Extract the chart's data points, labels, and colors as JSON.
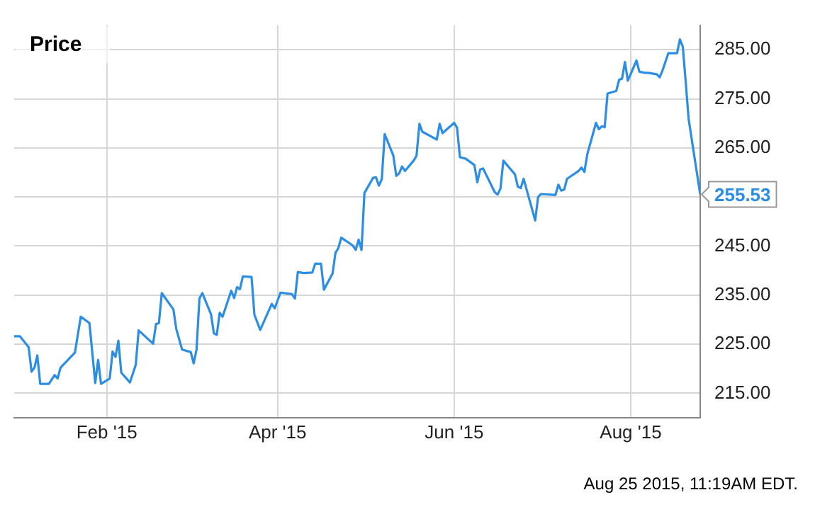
{
  "chart_data": {
    "type": "line",
    "title": "Price",
    "annotations": [
      {
        "text": "255.53",
        "x": "2015-08-25",
        "y": 255.53
      },
      "Aug 25 2015, 11:19AM EDT."
    ],
    "xlim": [
      "2014-12-31",
      "2015-08-25"
    ],
    "xticks": [
      {
        "value": "2015-02-01",
        "label": "Feb '15"
      },
      {
        "value": "2015-04-01",
        "label": "Apr '15"
      },
      {
        "value": "2015-06-01",
        "label": "Jun '15"
      },
      {
        "value": "2015-08-01",
        "label": "Aug '15"
      }
    ],
    "ylim": [
      210,
      290
    ],
    "yticks": [
      {
        "value": 215,
        "label": "215.00"
      },
      {
        "value": 225,
        "label": "225.00"
      },
      {
        "value": 235,
        "label": "235.00"
      },
      {
        "value": 245,
        "label": "245.00"
      },
      {
        "value": 255,
        "label": null
      },
      {
        "value": 265,
        "label": "265.00"
      },
      {
        "value": 275,
        "label": "275.00"
      },
      {
        "value": 285,
        "label": "285.00"
      }
    ],
    "grid": true,
    "legend": false,
    "marker": "none",
    "line_style": "solid",
    "series": [
      {
        "color": "#2b8de3",
        "x": [
          "2014-12-31",
          "2015-01-02",
          "2015-01-05",
          "2015-01-06",
          "2015-01-07",
          "2015-01-08",
          "2015-01-09",
          "2015-01-12",
          "2015-01-14",
          "2015-01-15",
          "2015-01-16",
          "2015-01-21",
          "2015-01-23",
          "2015-01-26",
          "2015-01-28",
          "2015-01-29",
          "2015-01-30",
          "2015-02-02",
          "2015-02-03",
          "2015-02-04",
          "2015-02-05",
          "2015-02-06",
          "2015-02-09",
          "2015-02-11",
          "2015-02-12",
          "2015-02-17",
          "2015-02-18",
          "2015-02-19",
          "2015-02-20",
          "2015-02-24",
          "2015-02-25",
          "2015-02-27",
          "2015-03-02",
          "2015-03-03",
          "2015-03-04",
          "2015-03-05",
          "2015-03-06",
          "2015-03-09",
          "2015-03-10",
          "2015-03-11",
          "2015-03-12",
          "2015-03-13",
          "2015-03-16",
          "2015-03-17",
          "2015-03-18",
          "2015-03-19",
          "2015-03-20",
          "2015-03-23",
          "2015-03-24",
          "2015-03-26",
          "2015-03-30",
          "2015-03-31",
          "2015-04-02",
          "2015-04-06",
          "2015-04-07",
          "2015-04-08",
          "2015-04-10",
          "2015-04-13",
          "2015-04-14",
          "2015-04-16",
          "2015-04-17",
          "2015-04-20",
          "2015-04-21",
          "2015-04-22",
          "2015-04-23",
          "2015-04-27",
          "2015-04-28",
          "2015-04-29",
          "2015-04-30",
          "2015-05-01",
          "2015-05-04",
          "2015-05-05",
          "2015-05-06",
          "2015-05-07",
          "2015-05-08",
          "2015-05-11",
          "2015-05-12",
          "2015-05-13",
          "2015-05-14",
          "2015-05-15",
          "2015-05-18",
          "2015-05-19",
          "2015-05-20",
          "2015-05-21",
          "2015-05-26",
          "2015-05-27",
          "2015-05-28",
          "2015-06-01",
          "2015-06-02",
          "2015-06-03",
          "2015-06-05",
          "2015-06-08",
          "2015-06-09",
          "2015-06-10",
          "2015-06-11",
          "2015-06-15",
          "2015-06-16",
          "2015-06-17",
          "2015-06-18",
          "2015-06-22",
          "2015-06-23",
          "2015-06-24",
          "2015-06-25",
          "2015-06-29",
          "2015-06-30",
          "2015-07-01",
          "2015-07-06",
          "2015-07-07",
          "2015-07-08",
          "2015-07-09",
          "2015-07-10",
          "2015-07-14",
          "2015-07-15",
          "2015-07-16",
          "2015-07-17",
          "2015-07-20",
          "2015-07-21",
          "2015-07-22",
          "2015-07-23",
          "2015-07-24",
          "2015-07-27",
          "2015-07-28",
          "2015-07-29",
          "2015-07-30",
          "2015-07-31",
          "2015-08-03",
          "2015-08-04",
          "2015-08-06",
          "2015-08-07",
          "2015-08-10",
          "2015-08-11",
          "2015-08-12",
          "2015-08-14",
          "2015-08-17",
          "2015-08-18",
          "2015-08-19",
          "2015-08-20",
          "2015-08-21",
          "2015-08-25"
        ],
        "values": [
          226.6,
          226.6,
          224.4,
          219.4,
          220.2,
          222.7,
          216.9,
          216.9,
          218.7,
          218.0,
          220.2,
          223.3,
          230.6,
          229.3,
          217.1,
          221.8,
          216.9,
          218.0,
          223.5,
          222.4,
          225.7,
          219.2,
          217.2,
          220.8,
          227.8,
          225.1,
          229.1,
          229.3,
          235.4,
          232.1,
          228.1,
          223.9,
          223.4,
          221.1,
          223.9,
          234.3,
          235.4,
          231.1,
          227.2,
          226.9,
          231.4,
          230.6,
          235.9,
          234.4,
          236.6,
          236.2,
          238.8,
          238.7,
          231.0,
          227.9,
          233.2,
          232.3,
          235.5,
          235.2,
          234.3,
          239.7,
          239.5,
          239.6,
          241.4,
          241.4,
          236.1,
          239.4,
          243.6,
          244.6,
          246.7,
          245.1,
          244.2,
          246.3,
          244.2,
          255.8,
          258.9,
          259.0,
          257.3,
          258.6,
          267.8,
          263.4,
          259.3,
          259.8,
          261.2,
          260.3,
          262.4,
          263.4,
          269.9,
          268.3,
          266.7,
          269.9,
          268.0,
          270.1,
          269.1,
          263.1,
          262.8,
          261.5,
          258.0,
          260.6,
          260.8,
          256.0,
          255.5,
          256.7,
          262.4,
          259.6,
          257.1,
          256.8,
          258.7,
          250.2,
          255.0,
          255.6,
          255.4,
          257.5,
          256.3,
          256.5,
          258.7,
          260.3,
          261.0,
          260.1,
          263.7,
          270.1,
          268.8,
          269.4,
          269.2,
          276.1,
          276.6,
          278.9,
          279.1,
          282.5,
          278.7,
          282.8,
          280.5,
          280.3,
          280.3,
          280.0,
          279.4,
          280.8,
          284.3,
          284.3,
          287.1,
          285.6,
          278.4,
          270.9,
          255.53
        ]
      }
    ]
  }
}
